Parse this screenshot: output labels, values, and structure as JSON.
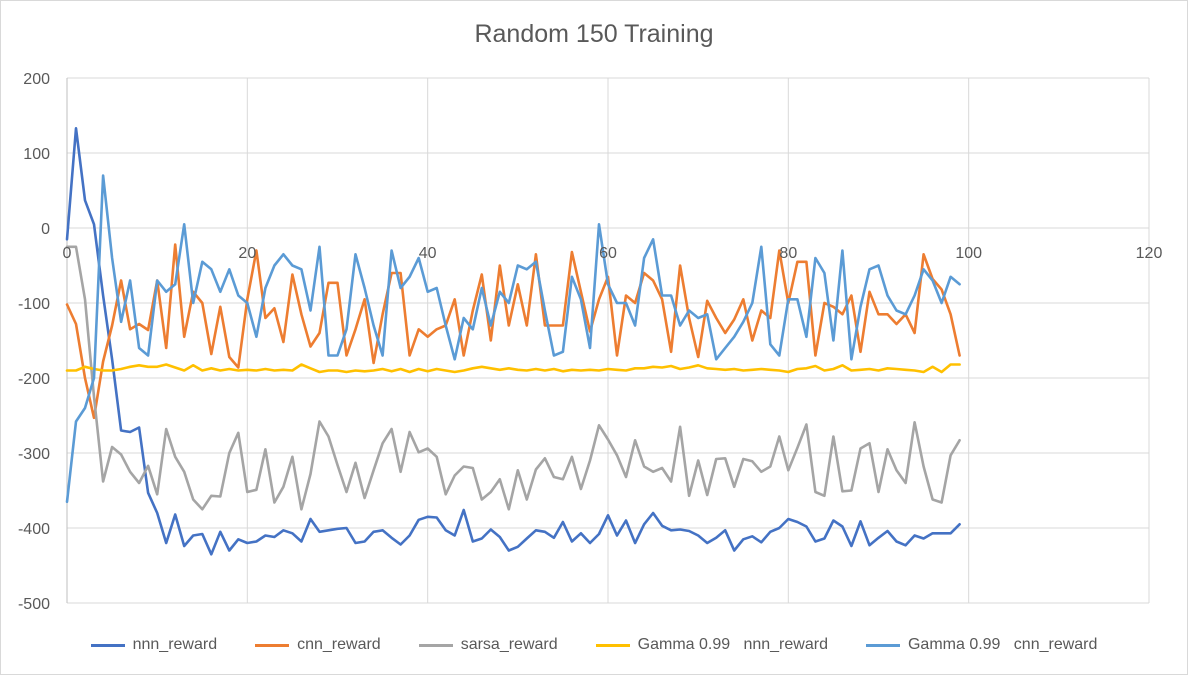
{
  "chart_data": {
    "type": "line",
    "title": "Random 150 Training",
    "xlabel": "",
    "ylabel": "",
    "xlim": [
      0,
      120
    ],
    "ylim": [
      -500,
      200
    ],
    "x_ticks": [
      "0",
      "20",
      "40",
      "60",
      "80",
      "100",
      "120"
    ],
    "y_ticks": [
      "200",
      "100",
      "0",
      "-100",
      "-200",
      "-300",
      "-400",
      "-500"
    ],
    "grid": true,
    "legend_position": "bottom",
    "x": [
      0,
      1,
      2,
      3,
      4,
      5,
      6,
      7,
      8,
      9,
      10,
      11,
      12,
      13,
      14,
      15,
      16,
      17,
      18,
      19,
      20,
      21,
      22,
      23,
      24,
      25,
      26,
      27,
      28,
      29,
      30,
      31,
      32,
      33,
      34,
      35,
      36,
      37,
      38,
      39,
      40,
      41,
      42,
      43,
      44,
      45,
      46,
      47,
      48,
      49,
      50,
      51,
      52,
      53,
      54,
      55,
      56,
      57,
      58,
      59,
      60,
      61,
      62,
      63,
      64,
      65,
      66,
      67,
      68,
      69,
      70,
      71,
      72,
      73,
      74,
      75,
      76,
      77,
      78,
      79,
      80,
      81,
      82,
      83,
      84,
      85,
      86,
      87,
      88,
      89,
      90,
      91,
      92,
      93,
      94,
      95,
      96,
      97,
      98,
      99
    ],
    "series": [
      {
        "name": "nnn_reward",
        "color": "#4472C4",
        "values": [
          -15,
          133,
          37,
          5,
          -90,
          -175,
          -270,
          -272,
          -266,
          -353,
          -380,
          -420,
          -382,
          -424,
          -410,
          -408,
          -435,
          -405,
          -430,
          -415,
          -420,
          -418,
          -410,
          -412,
          -403,
          -407,
          -418,
          -388,
          -405,
          -403,
          -401,
          -400,
          -420,
          -418,
          -405,
          -403,
          -413,
          -422,
          -410,
          -389,
          -385,
          -386,
          -403,
          -410,
          -376,
          -418,
          -414,
          -402,
          -412,
          -430,
          -425,
          -414,
          -403,
          -405,
          -413,
          -392,
          -418,
          -407,
          -420,
          -408,
          -383,
          -410,
          -390,
          -420,
          -395,
          -380,
          -397,
          -403,
          -402,
          -404,
          -410,
          -420,
          -413,
          -403,
          -430,
          -415,
          -411,
          -419,
          -405,
          -400,
          -388,
          -392,
          -398,
          -418,
          -414,
          -390,
          -398,
          -424,
          -391,
          -423,
          -413,
          -404,
          -418,
          -423,
          -410,
          -414,
          -407,
          -407,
          -407,
          -395
        ]
      },
      {
        "name": "cnn_reward",
        "color": "#ED7D31",
        "values": [
          -102,
          -128,
          -200,
          -253,
          -178,
          -130,
          -70,
          -135,
          -128,
          -136,
          -70,
          -160,
          -22,
          -145,
          -85,
          -100,
          -168,
          -105,
          -172,
          -186,
          -95,
          -30,
          -120,
          -107,
          -152,
          -62,
          -115,
          -158,
          -140,
          -73,
          -73,
          -170,
          -135,
          -95,
          -180,
          -115,
          -60,
          -60,
          -170,
          -135,
          -145,
          -135,
          -130,
          -95,
          -170,
          -110,
          -62,
          -150,
          -50,
          -130,
          -75,
          -130,
          -35,
          -130,
          -130,
          -130,
          -32,
          -85,
          -138,
          -95,
          -65,
          -170,
          -90,
          -100,
          -60,
          -70,
          -95,
          -165,
          -50,
          -120,
          -172,
          -97,
          -120,
          -140,
          -122,
          -95,
          -150,
          -110,
          -120,
          -30,
          -100,
          -45,
          -45,
          -170,
          -100,
          -105,
          -115,
          -90,
          -165,
          -85,
          -115,
          -115,
          -128,
          -115,
          -140,
          -35,
          -68,
          -82,
          -115,
          -170
        ]
      },
      {
        "name": "sarsa_reward",
        "color": "#A5A5A5",
        "values": [
          -25,
          -25,
          -95,
          -225,
          -338,
          -292,
          -302,
          -325,
          -340,
          -317,
          -355,
          -268,
          -305,
          -325,
          -362,
          -375,
          -357,
          -358,
          -300,
          -273,
          -352,
          -349,
          -295,
          -366,
          -345,
          -305,
          -375,
          -328,
          -258,
          -278,
          -316,
          -352,
          -313,
          -360,
          -323,
          -287,
          -268,
          -325,
          -272,
          -299,
          -294,
          -305,
          -355,
          -330,
          -318,
          -320,
          -362,
          -352,
          -335,
          -375,
          -323,
          -362,
          -322,
          -307,
          -332,
          -335,
          -305,
          -348,
          -310,
          -263,
          -282,
          -303,
          -332,
          -283,
          -318,
          -325,
          -320,
          -338,
          -265,
          -357,
          -310,
          -356,
          -308,
          -307,
          -345,
          -308,
          -311,
          -325,
          -318,
          -278,
          -323,
          -293,
          -262,
          -352,
          -357,
          -278,
          -351,
          -350,
          -294,
          -287,
          -352,
          -295,
          -323,
          -340,
          -259,
          -318,
          -362,
          -366,
          -303,
          -283
        ]
      },
      {
        "name": "Gamma 0.99   nnn_reward",
        "color": "#FFC000",
        "values": [
          -190,
          -190,
          -185,
          -188,
          -190,
          -190,
          -188,
          -185,
          -183,
          -185,
          -185,
          -182,
          -186,
          -190,
          -183,
          -190,
          -187,
          -190,
          -188,
          -190,
          -189,
          -190,
          -188,
          -190,
          -189,
          -190,
          -182,
          -187,
          -192,
          -190,
          -190,
          -192,
          -190,
          -191,
          -190,
          -188,
          -191,
          -188,
          -192,
          -188,
          -191,
          -188,
          -190,
          -192,
          -190,
          -187,
          -185,
          -187,
          -189,
          -187,
          -189,
          -190,
          -188,
          -190,
          -188,
          -191,
          -189,
          -190,
          -189,
          -190,
          -188,
          -189,
          -190,
          -187,
          -187,
          -185,
          -186,
          -184,
          -188,
          -186,
          -183,
          -187,
          -188,
          -189,
          -188,
          -190,
          -189,
          -188,
          -189,
          -190,
          -192,
          -188,
          -187,
          -184,
          -190,
          -188,
          -183,
          -190,
          -189,
          -188,
          -190,
          -187,
          -188,
          -189,
          -190,
          -192,
          -185,
          -192,
          -182,
          -182
        ]
      },
      {
        "name": "Gamma 0.99   cnn_reward",
        "color": "#5B9BD5",
        "values": [
          -365,
          -258,
          -240,
          -200,
          70,
          -40,
          -125,
          -70,
          -160,
          -170,
          -70,
          -85,
          -75,
          5,
          -100,
          -45,
          -55,
          -85,
          -55,
          -90,
          -100,
          -145,
          -80,
          -50,
          -35,
          -50,
          -55,
          -110,
          -25,
          -170,
          -170,
          -135,
          -35,
          -80,
          -130,
          -170,
          -30,
          -80,
          -65,
          -40,
          -85,
          -80,
          -130,
          -175,
          -120,
          -135,
          -80,
          -130,
          -85,
          -100,
          -50,
          -55,
          -45,
          -110,
          -170,
          -165,
          -65,
          -95,
          -160,
          5,
          -75,
          -100,
          -100,
          -130,
          -40,
          -15,
          -90,
          -90,
          -130,
          -110,
          -120,
          -115,
          -175,
          -160,
          -145,
          -125,
          -100,
          -25,
          -155,
          -170,
          -95,
          -95,
          -145,
          -40,
          -60,
          -150,
          -30,
          -175,
          -105,
          -55,
          -50,
          -90,
          -110,
          -115,
          -90,
          -55,
          -70,
          -100,
          -65,
          -75
        ]
      }
    ]
  }
}
